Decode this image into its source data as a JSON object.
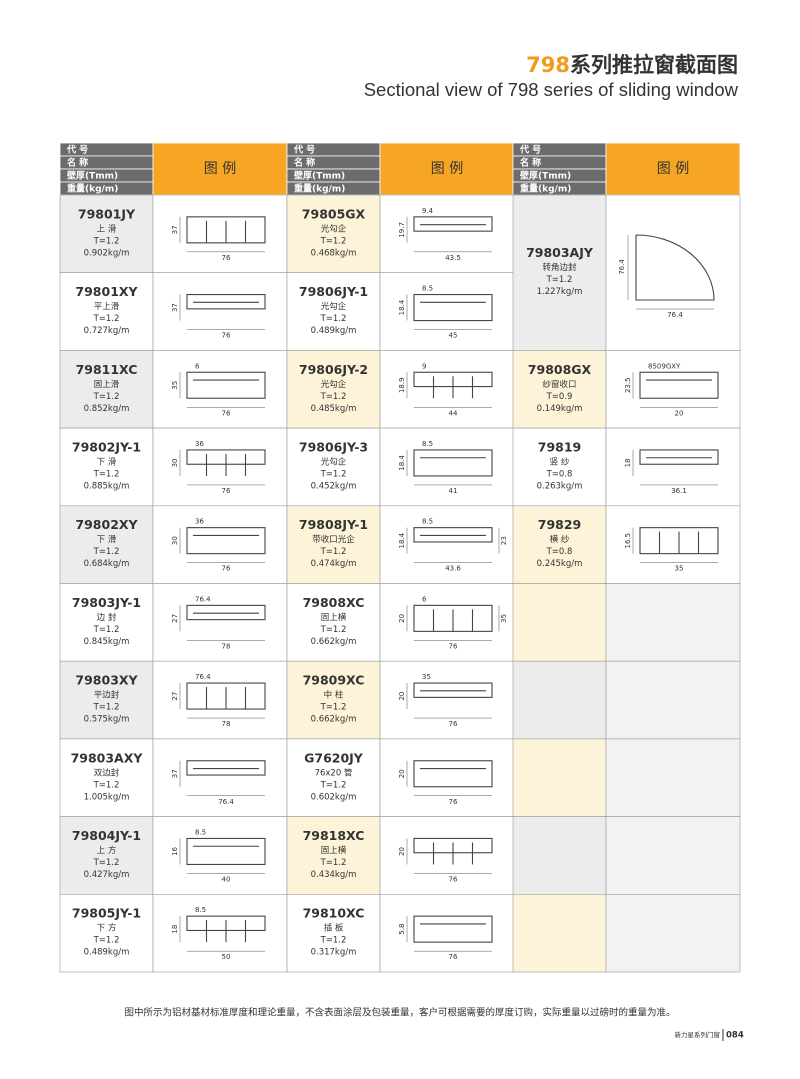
{
  "header": {
    "title_number": "798",
    "title_text": "系列推拉窗截面图",
    "subtitle": "Sectional view of 798 series of sliding window"
  },
  "table": {
    "headers": [
      "代 号",
      "名 称",
      "壁厚(Tmm)",
      "重量(kg/m)"
    ],
    "figure_header": "图 例",
    "columns": [
      [
        {
          "code": "79801JY",
          "name": "上 滑",
          "thickness": "T=1.2",
          "weight": "0.902kg/m",
          "dims": [
            "37",
            "76"
          ]
        },
        {
          "code": "79801XY",
          "name": "平上滑",
          "thickness": "T=1.2",
          "weight": "0.727kg/m",
          "dims": [
            "37",
            "76"
          ]
        },
        {
          "code": "79811XC",
          "name": "固上滑",
          "thickness": "T=1.2",
          "weight": "0.852kg/m",
          "dims": [
            "35",
            "6",
            "76"
          ]
        },
        {
          "code": "79802JY-1",
          "name": "下 滑",
          "thickness": "T=1.2",
          "weight": "0.885kg/m",
          "dims": [
            "30",
            "36",
            "76"
          ]
        },
        {
          "code": "79802XY",
          "name": "下 滑",
          "thickness": "T=1.2",
          "weight": "0.684kg/m",
          "dims": [
            "30",
            "36",
            "76"
          ]
        },
        {
          "code": "79803JY-1",
          "name": "边 封",
          "thickness": "T=1.2",
          "weight": "0.845kg/m",
          "dims": [
            "27",
            "76.4",
            "78"
          ]
        },
        {
          "code": "79803XY",
          "name": "平边封",
          "thickness": "T=1.2",
          "weight": "0.575kg/m",
          "dims": [
            "27",
            "76.4",
            "78"
          ]
        },
        {
          "code": "79803AXY",
          "name": "双边封",
          "thickness": "T=1.2",
          "weight": "1.005kg/m",
          "dims": [
            "37",
            "76.4"
          ]
        },
        {
          "code": "79804JY-1",
          "name": "上 方",
          "thickness": "T=1.2",
          "weight": "0.427kg/m",
          "dims": [
            "16",
            "8.5",
            "40"
          ]
        },
        {
          "code": "79805JY-1",
          "name": "下 方",
          "thickness": "T=1.2",
          "weight": "0.489kg/m",
          "dims": [
            "18",
            "8.5",
            "50"
          ]
        }
      ],
      [
        {
          "code": "79805GX",
          "name": "光勾企",
          "thickness": "T=1.2",
          "weight": "0.468kg/m",
          "dims": [
            "19.7",
            "9.4",
            "43.5"
          ]
        },
        {
          "code": "79806JY-1",
          "name": "光勾企",
          "thickness": "T=1.2",
          "weight": "0.489kg/m",
          "dims": [
            "18.4",
            "8.5",
            "45"
          ]
        },
        {
          "code": "79806JY-2",
          "name": "光勾企",
          "thickness": "T=1.2",
          "weight": "0.485kg/m",
          "dims": [
            "18.9",
            "9",
            "44"
          ]
        },
        {
          "code": "79806JY-3",
          "name": "光勾企",
          "thickness": "T=1.2",
          "weight": "0.452kg/m",
          "dims": [
            "18.4",
            "8.5",
            "41"
          ]
        },
        {
          "code": "79808JY-1",
          "name": "带收口光企",
          "thickness": "T=1.2",
          "weight": "0.474kg/m",
          "dims": [
            "18.4",
            "8.5",
            "23",
            "43.6"
          ]
        },
        {
          "code": "79808XC",
          "name": "固上横",
          "thickness": "T=1.2",
          "weight": "0.662kg/m",
          "dims": [
            "20",
            "6",
            "35",
            "76"
          ]
        },
        {
          "code": "79809XC",
          "name": "中 柱",
          "thickness": "T=1.2",
          "weight": "0.662kg/m",
          "dims": [
            "20",
            "35",
            "76"
          ]
        },
        {
          "code": "G7620JY",
          "name": "76x20 管",
          "thickness": "T=1.2",
          "weight": "0.602kg/m",
          "dims": [
            "20",
            "76"
          ]
        },
        {
          "code": "79818XC",
          "name": "固上横",
          "thickness": "T=1.2",
          "weight": "0.434kg/m",
          "dims": [
            "20",
            "76"
          ]
        },
        {
          "code": "79810XC",
          "name": "插 板",
          "thickness": "T=1.2",
          "weight": "0.317kg/m",
          "dims": [
            "5.8",
            "76"
          ]
        }
      ],
      [
        {
          "code": "79803AJY",
          "name": "转角边封",
          "thickness": "T=1.2",
          "weight": "1.227kg/m",
          "dims": [
            "76.4",
            "76.4"
          ]
        },
        {
          "code": "79808GX",
          "name": "纱窗收口",
          "thickness": "T=0.9",
          "weight": "0.149kg/m",
          "dims": [
            "23.5",
            "8509GXY",
            "20"
          ]
        },
        {
          "code": "79819",
          "name": "竖 纱",
          "thickness": "T=0.8",
          "weight": "0.263kg/m",
          "dims": [
            "18",
            "36.1"
          ]
        },
        {
          "code": "79829",
          "name": "横 纱",
          "thickness": "T=0.8",
          "weight": "0.245kg/m",
          "dims": [
            "16.5",
            "35"
          ]
        }
      ]
    ]
  },
  "footer": {
    "note": "图中所示为铝材基材标准厚度和理论重量，不含表面涂层及包装重量，客户可根据需要的厚度订购，实际重量以过磅时的重量为准。",
    "brand": "新力星系列门窗",
    "page": "084"
  }
}
